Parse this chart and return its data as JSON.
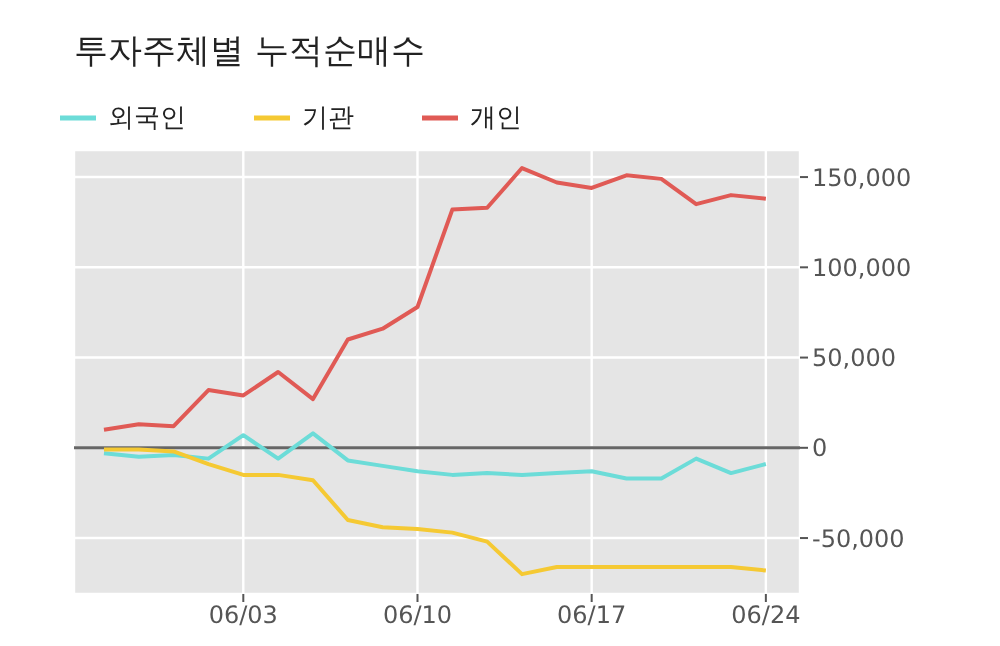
{
  "chart_data": {
    "type": "line",
    "title": "투자주체별 누적순매수",
    "categories": [
      null,
      null,
      null,
      null,
      "06/03",
      null,
      null,
      null,
      null,
      "06/10",
      null,
      null,
      null,
      null,
      "06/17",
      null,
      null,
      null,
      null,
      "06/24"
    ],
    "series": [
      {
        "name": "외국인",
        "color": "#6cdcd8",
        "values": [
          -3000,
          -5000,
          -4000,
          -6000,
          7000,
          -6000,
          8000,
          -7000,
          -10000,
          -13000,
          -15000,
          -14000,
          -15000,
          -14000,
          -13000,
          -17000,
          -17000,
          -6000,
          -14000,
          -9000
        ]
      },
      {
        "name": "기관",
        "color": "#f5c933",
        "values": [
          -1000,
          -1000,
          -2000,
          -9000,
          -15000,
          -15000,
          -18000,
          -40000,
          -44000,
          -45000,
          -47000,
          -52000,
          -70000,
          -66000,
          -66000,
          -66000,
          -66000,
          -66000,
          -66000,
          -68000
        ]
      },
      {
        "name": "개인",
        "color": "#e05a55",
        "values": [
          10000,
          13000,
          12000,
          32000,
          29000,
          42000,
          27000,
          60000,
          66000,
          78000,
          132000,
          133000,
          155000,
          147000,
          144000,
          151000,
          149000,
          135000,
          140000,
          138000
        ]
      }
    ],
    "ylim": [
      -81000,
      165000
    ],
    "yticks": [
      {
        "value": -50000,
        "label": "-50,000"
      },
      0,
      {
        "value": 50000,
        "label": "50,000"
      },
      {
        "value": 100000,
        "label": "100,000"
      },
      {
        "value": 150000,
        "label": "150,000"
      }
    ],
    "ref_lines": [
      {
        "axis": "y",
        "value": 0,
        "color": "#666666"
      }
    ],
    "grid": true,
    "legend": "top left",
    "marker": "none",
    "line_style": "solid"
  }
}
